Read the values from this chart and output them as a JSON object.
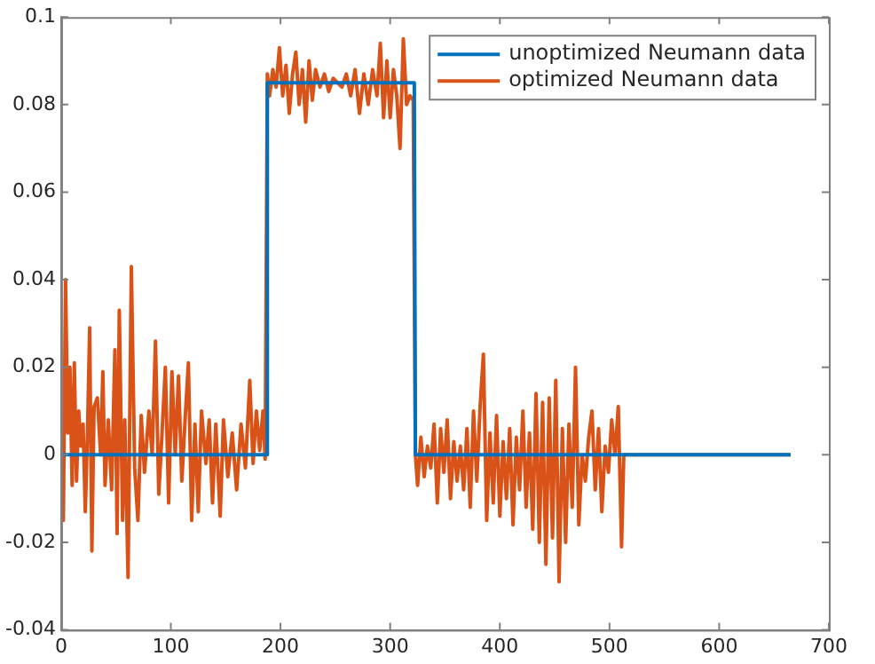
{
  "chart_data": {
    "type": "line",
    "xlim": [
      0,
      700
    ],
    "xticks": [
      0,
      100,
      200,
      300,
      400,
      500,
      600,
      700
    ],
    "ylim": [
      -0.04,
      0.1
    ],
    "yticks": [
      -0.04,
      -0.02,
      0,
      0.02,
      0.04,
      0.06,
      0.08,
      0.1
    ],
    "grid": false,
    "legend": "top right",
    "marker": "none",
    "line_style": "solid",
    "series": [
      {
        "name": "unoptimized Neumann data",
        "color": "#0072bd",
        "x": [
          0,
          187,
          188,
          322,
          323,
          665
        ],
        "values": [
          0,
          0,
          0.085,
          0.085,
          0,
          0
        ]
      },
      {
        "name": "optimized Neumann data",
        "color": "#d95319",
        "x": [
          0,
          2,
          4,
          6,
          8,
          10,
          12,
          14,
          16,
          18,
          20,
          22,
          24,
          26,
          28,
          30,
          33,
          36,
          38,
          40,
          43,
          46,
          49,
          51,
          53,
          56,
          58,
          61,
          64,
          67,
          70,
          73,
          76,
          80,
          83,
          86,
          89,
          92,
          95,
          98,
          101,
          104,
          107,
          110,
          113,
          116,
          119,
          122,
          125,
          128,
          132,
          135,
          138,
          141,
          145,
          148,
          152,
          156,
          160,
          164,
          168,
          172,
          175,
          178,
          181,
          184,
          186,
          188,
          190,
          193,
          196,
          199,
          202,
          205,
          208,
          211,
          214,
          217,
          220,
          223,
          226,
          229,
          232,
          236,
          240,
          244,
          248,
          252,
          256,
          260,
          264,
          268,
          272,
          276,
          280,
          284,
          288,
          291,
          294,
          297,
          300,
          303,
          306,
          309,
          312,
          315,
          318,
          321,
          323,
          325,
          328,
          331,
          334,
          337,
          340,
          343,
          346,
          349,
          352,
          355,
          358,
          361,
          364,
          367,
          370,
          373,
          376,
          379,
          382,
          385,
          388,
          391,
          394,
          397,
          400,
          403,
          406,
          409,
          412,
          415,
          418,
          421,
          424,
          427,
          430,
          433,
          436,
          439,
          442,
          445,
          448,
          451,
          454,
          457,
          460,
          463,
          466,
          469,
          472,
          475,
          478,
          481,
          484,
          487,
          490,
          493,
          496,
          499,
          502,
          505,
          508,
          511,
          513,
          665
        ],
        "values": [
          0.005,
          -0.015,
          0.04,
          0.005,
          0.02,
          -0.007,
          0.021,
          -0.006,
          0.01,
          0.002,
          0.007,
          -0.013,
          0.005,
          0.029,
          -0.022,
          0.011,
          0.013,
          0,
          0.019,
          -0.007,
          0.008,
          -0.008,
          0.024,
          -0.018,
          0.033,
          -0.015,
          0.008,
          -0.028,
          0.043,
          -0.003,
          -0.015,
          0.009,
          -0.004,
          0.01,
          0,
          0.026,
          -0.009,
          0.005,
          0.02,
          -0.011,
          0.019,
          0,
          0.018,
          -0.006,
          0.008,
          0.021,
          -0.015,
          0.007,
          -0.013,
          0.01,
          -0.002,
          0.008,
          -0.011,
          0.007,
          -0.014,
          0.008,
          -0.005,
          0.005,
          -0.008,
          0.007,
          -0.003,
          0.017,
          -0.002,
          0.01,
          0.001,
          0.01,
          -0.001,
          0.087,
          0.082,
          0.088,
          0.084,
          0.093,
          0.082,
          0.089,
          0.078,
          0.087,
          0.092,
          0.08,
          0.088,
          0.076,
          0.09,
          0.081,
          0.088,
          0.084,
          0.087,
          0.083,
          0.086,
          0.085,
          0.084,
          0.087,
          0.082,
          0.088,
          0.078,
          0.087,
          0.08,
          0.088,
          0.082,
          0.094,
          0.077,
          0.09,
          0.077,
          0.088,
          0.082,
          0.07,
          0.095,
          0.08,
          0.082,
          0.081,
          0,
          -0.007,
          0.004,
          -0.005,
          0.002,
          -0.003,
          0.007,
          -0.011,
          0.006,
          -0.004,
          0.008,
          -0.01,
          0.003,
          -0.006,
          0.002,
          -0.008,
          0.006,
          -0.012,
          0.01,
          -0.006,
          0.011,
          0.023,
          -0.015,
          0.005,
          -0.011,
          0.009,
          -0.014,
          0.003,
          -0.01,
          0.006,
          -0.016,
          0.004,
          -0.008,
          0.01,
          -0.012,
          0.005,
          -0.017,
          0.014,
          -0.02,
          0.012,
          -0.025,
          0.013,
          -0.019,
          0.017,
          -0.029,
          0.006,
          -0.02,
          0.007,
          -0.012,
          0.02,
          -0.016,
          0,
          -0.006,
          0.004,
          0.01,
          -0.008,
          0.006,
          -0.013,
          0.002,
          -0.004,
          0.008,
          0,
          0.011,
          -0.021,
          0,
          0
        ]
      }
    ]
  }
}
